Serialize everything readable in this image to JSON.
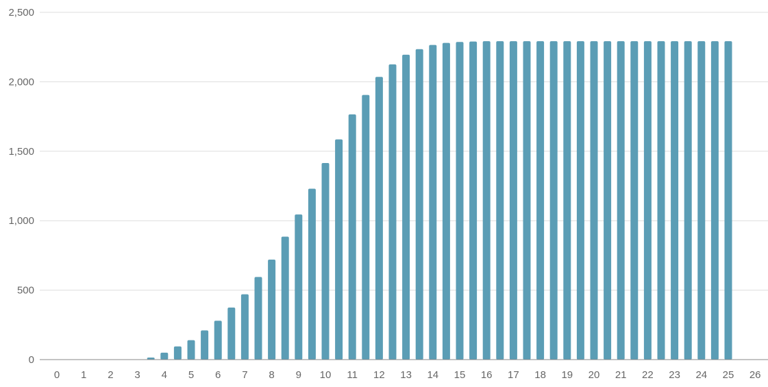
{
  "chart_data": {
    "type": "bar",
    "title": "",
    "xlabel": "",
    "ylabel": "",
    "grid": true,
    "legend": "none",
    "xlim": [
      -0.5,
      26.5
    ],
    "ylim": [
      0,
      2500
    ],
    "x_ticks": [
      "0",
      "1",
      "2",
      "3",
      "4",
      "5",
      "6",
      "7",
      "8",
      "9",
      "10",
      "11",
      "12",
      "13",
      "14",
      "15",
      "16",
      "17",
      "18",
      "19",
      "20",
      "21",
      "22",
      "23",
      "24",
      "25",
      "26"
    ],
    "y_ticks": [
      "0",
      "500",
      "1,000",
      "1,500",
      "2,000",
      "2,500"
    ],
    "y_tick_values": [
      0,
      500,
      1000,
      1500,
      2000,
      2500
    ],
    "bar_color": "#5b9db5",
    "series": [
      {
        "x": [
          3.5,
          4.0,
          4.5,
          5.0,
          5.5,
          6.0,
          6.5,
          7.0,
          7.5,
          8.0,
          8.5,
          9.0,
          9.5,
          10.0,
          10.5,
          11.0,
          11.5,
          12.0,
          12.5,
          13.0,
          13.5,
          14.0,
          14.5,
          15.0,
          15.5,
          16.0,
          16.5,
          17.0,
          17.5,
          18.0,
          18.5,
          19.0,
          19.5,
          20.0,
          20.5,
          21.0,
          21.5,
          22.0,
          22.5,
          23.0,
          23.5,
          24.0,
          24.5,
          25.0
        ],
        "values": [
          15,
          50,
          95,
          140,
          210,
          280,
          375,
          470,
          595,
          720,
          885,
          1045,
          1230,
          1415,
          1585,
          1765,
          1905,
          2035,
          2125,
          2195,
          2235,
          2265,
          2280,
          2287,
          2290,
          2292,
          2292,
          2292,
          2292,
          2292,
          2292,
          2292,
          2292,
          2292,
          2292,
          2292,
          2292,
          2292,
          2292,
          2292,
          2292,
          2292,
          2292,
          2292
        ]
      }
    ]
  }
}
